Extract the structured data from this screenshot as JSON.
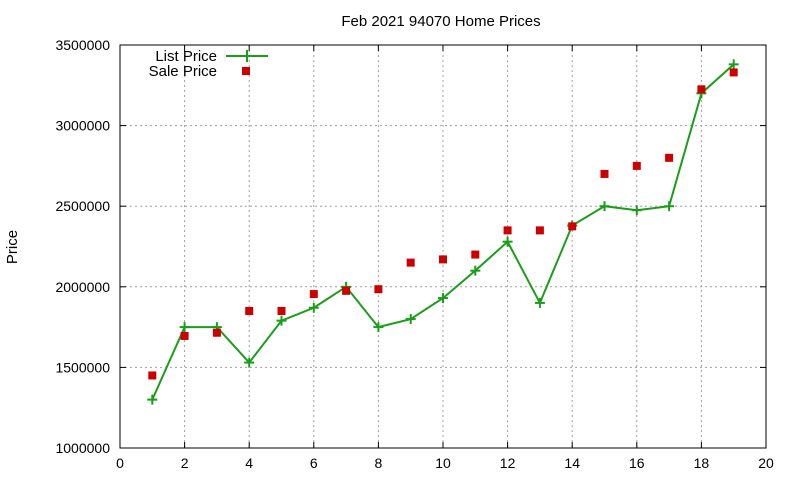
{
  "chart_data": {
    "type": "line",
    "title": "Feb 2021 94070 Home Prices",
    "xlabel": "",
    "ylabel": "Price",
    "xlim": [
      0,
      20
    ],
    "ylim": [
      1000000,
      3500000
    ],
    "xticks": [
      0,
      2,
      4,
      6,
      8,
      10,
      12,
      14,
      16,
      18,
      20
    ],
    "yticks": [
      1000000,
      1500000,
      2000000,
      2500000,
      3000000,
      3500000
    ],
    "grid": true,
    "legend_position": "top-left",
    "series": [
      {
        "name": "List Price",
        "style": "line-plus",
        "color": "#1a9e1a",
        "x": [
          1,
          2,
          3,
          4,
          5,
          6,
          7,
          8,
          9,
          10,
          11,
          12,
          13,
          14,
          15,
          16,
          17,
          18,
          19
        ],
        "values": [
          1300000,
          1750000,
          1750000,
          1530000,
          1790000,
          1870000,
          2000000,
          1750000,
          1800000,
          1930000,
          2100000,
          2280000,
          1900000,
          2380000,
          2500000,
          2475000,
          2500000,
          3200000,
          3380000
        ]
      },
      {
        "name": "Sale Price",
        "style": "square-markers",
        "color": "#cc0000",
        "x": [
          1,
          2,
          3,
          4,
          5,
          6,
          7,
          8,
          9,
          10,
          11,
          12,
          13,
          14,
          15,
          16,
          17,
          18,
          19
        ],
        "values": [
          1450000,
          1695000,
          1715000,
          1850000,
          1850000,
          1955000,
          1975000,
          1985000,
          2150000,
          2170000,
          2200000,
          2350000,
          2350000,
          2375000,
          2700000,
          2750000,
          2800000,
          3225000,
          3330000
        ]
      }
    ]
  }
}
